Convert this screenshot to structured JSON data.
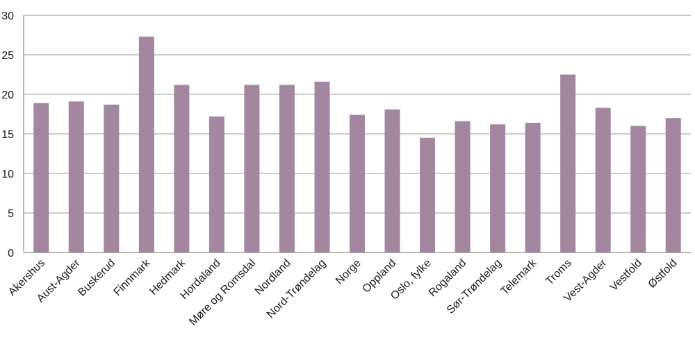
{
  "chart_data": {
    "type": "bar",
    "title": "",
    "xlabel": "",
    "ylabel": "",
    "ylim": [
      0,
      30
    ],
    "yticks": [
      0,
      5,
      10,
      15,
      20,
      25,
      30
    ],
    "grid": true,
    "legend": "none",
    "bar_color": "#a3869f",
    "categories": [
      "Akershus",
      "Aust-Agder",
      "Buskerud",
      "Finnmark",
      "Hedmark",
      "Hordaland",
      "Møre og Romsdal",
      "Nordland",
      "Nord-Trøndelag",
      "Norge",
      "Oppland",
      "Oslo, fylke",
      "Rogaland",
      "Sør-Trøndelag",
      "Telemark",
      "Troms",
      "Vest-Agder",
      "Vestfold",
      "Østfold"
    ],
    "values": [
      18.9,
      19.1,
      18.7,
      27.3,
      21.2,
      17.2,
      21.2,
      21.2,
      21.6,
      17.4,
      18.1,
      14.5,
      16.6,
      16.2,
      16.4,
      22.5,
      18.3,
      16.0,
      17.0
    ]
  }
}
